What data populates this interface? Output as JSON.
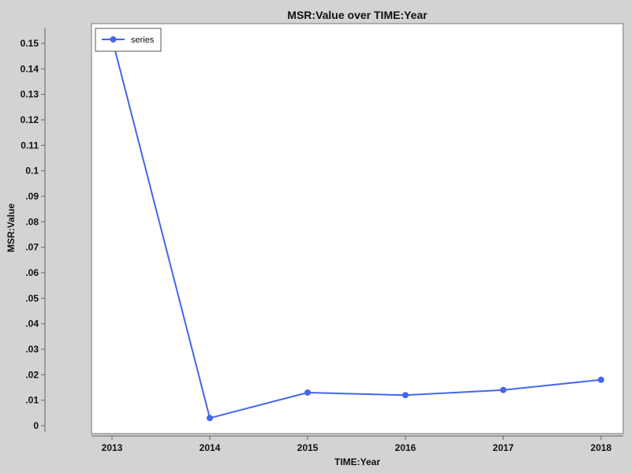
{
  "chart_data": {
    "type": "line",
    "title": "MSR:Value over TIME:Year",
    "xlabel": "TIME:Year",
    "ylabel": "MSR:Value",
    "x": [
      "2013",
      "2014",
      "2015",
      "2016",
      "2017",
      "2018"
    ],
    "series": [
      {
        "name": "series",
        "values": [
          0.152,
          0.003,
          0.013,
          0.012,
          0.014,
          0.018
        ]
      }
    ],
    "y_ticks": [
      {
        "value": 0,
        "label": "0"
      },
      {
        "value": 0.01,
        "label": ".01"
      },
      {
        "value": 0.02,
        "label": ".02"
      },
      {
        "value": 0.03,
        "label": ".03"
      },
      {
        "value": 0.04,
        "label": ".04"
      },
      {
        "value": 0.05,
        "label": ".05"
      },
      {
        "value": 0.06,
        "label": ".06"
      },
      {
        "value": 0.07,
        "label": ".07"
      },
      {
        "value": 0.08,
        "label": ".08"
      },
      {
        "value": 0.09,
        "label": ".09"
      },
      {
        "value": 0.1,
        "label": "0.1"
      },
      {
        "value": 0.11,
        "label": "0.11"
      },
      {
        "value": 0.12,
        "label": "0.12"
      },
      {
        "value": 0.13,
        "label": "0.13"
      },
      {
        "value": 0.14,
        "label": "0.14"
      },
      {
        "value": 0.15,
        "label": "0.15"
      }
    ],
    "ylim": [
      0,
      0.155
    ],
    "grid": false,
    "legend": "top-left",
    "colors": {
      "series": "#4466ee",
      "plot_background": "#ffffff",
      "page_background": "#d3d3d3"
    }
  }
}
